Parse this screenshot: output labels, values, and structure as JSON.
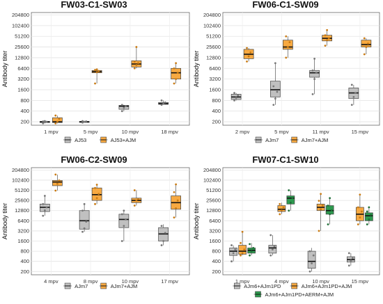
{
  "chart_data": [
    {
      "type": "box",
      "title": "FW03-C1-SW03",
      "ylabel": "Antibody titer",
      "ticks": [
        200,
        400,
        800,
        1600,
        3200,
        6400,
        12800,
        25600,
        51200,
        102400,
        204800
      ],
      "categories": [
        "1 mpv",
        "5 mpv",
        "10 mpv",
        "18 mpv"
      ],
      "legend_rows": [
        [
          "AJ53",
          "AJ53+AJM"
        ]
      ],
      "series": [
        {
          "name": "AJ53",
          "color": "#c0c0c0",
          "boxes": [
            {
              "cat": 0,
              "min": 180,
              "q1": 190,
              "med": 200,
              "q3": 205,
              "max": 210,
              "pts": [
                180,
                195,
                200,
                205,
                210
              ]
            },
            {
              "cat": 1,
              "min": 190,
              "q1": 195,
              "med": 200,
              "q3": 205,
              "max": 210,
              "pts": [
                190,
                200,
                205,
                210
              ]
            },
            {
              "cat": 2,
              "min": 400,
              "q1": 450,
              "med": 550,
              "q3": 580,
              "max": 600,
              "pts": [
                400,
                500,
                550,
                600
              ]
            },
            {
              "cat": 3,
              "min": 600,
              "q1": 620,
              "med": 650,
              "q3": 700,
              "max": 800,
              "pts": [
                600,
                650,
                700,
                800
              ]
            }
          ]
        },
        {
          "name": "AJ53+AJM",
          "color": "#f7a941",
          "boxes": [
            {
              "cat": 0,
              "min": 180,
              "q1": 190,
              "med": 200,
              "q3": 260,
              "max": 300,
              "pts": [
                180,
                200,
                240,
                300
              ]
            },
            {
              "cat": 1,
              "min": 2400,
              "q1": 4800,
              "med": 5200,
              "q3": 5600,
              "max": 6000,
              "pts": [
                2400,
                5000,
                5400,
                5800,
                6000
              ]
            },
            {
              "cat": 2,
              "min": 6400,
              "q1": 7000,
              "med": 8500,
              "q3": 10500,
              "max": 25600,
              "pts": [
                6400,
                8000,
                9000,
                10000,
                25600
              ]
            },
            {
              "cat": 3,
              "min": 2400,
              "q1": 3200,
              "med": 4800,
              "q3": 6400,
              "max": 9000,
              "pts": [
                2400,
                3200,
                4800,
                6400,
                9000
              ]
            }
          ]
        }
      ]
    },
    {
      "type": "box",
      "title": "FW06-C1-SW09",
      "ylabel": "Antibody titer",
      "ticks": [
        200,
        400,
        800,
        1600,
        3200,
        6400,
        12800,
        25600,
        51200,
        102400,
        204800
      ],
      "categories": [
        "2 mpv",
        "5 mpv",
        "11 mpv",
        "15 mpv"
      ],
      "legend_rows": [
        [
          "AJm7",
          "AJm7+AJM"
        ]
      ],
      "series": [
        {
          "name": "AJm7",
          "color": "#c0c0c0",
          "boxes": [
            {
              "cat": 0,
              "min": 800,
              "q1": 850,
              "med": 1000,
              "q3": 1200,
              "max": 1300,
              "pts": [
                800,
                950,
                1100,
                1300
              ]
            },
            {
              "cat": 1,
              "min": 600,
              "q1": 1000,
              "med": 1600,
              "q3": 2800,
              "max": 9000,
              "pts": [
                600,
                900,
                1400,
                2000,
                9000
              ]
            },
            {
              "cat": 2,
              "min": 1200,
              "q1": 3600,
              "med": 4800,
              "q3": 5600,
              "max": 12000,
              "pts": [
                1200,
                3200,
                4800,
                5600,
                12000
              ]
            },
            {
              "cat": 3,
              "min": 600,
              "q1": 900,
              "med": 1300,
              "q3": 1800,
              "max": 2200,
              "pts": [
                600,
                1000,
                1300,
                2200
              ]
            }
          ]
        },
        {
          "name": "AJm7+AJM",
          "color": "#f7a941",
          "boxes": [
            {
              "cat": 0,
              "min": 10000,
              "q1": 12000,
              "med": 16000,
              "q3": 22000,
              "max": 24000,
              "pts": [
                10000,
                14000,
                18000,
                24000
              ]
            },
            {
              "cat": 1,
              "min": 12800,
              "q1": 22000,
              "med": 25600,
              "q3": 40000,
              "max": 51200,
              "pts": [
                12800,
                25600,
                35000,
                51200
              ]
            },
            {
              "cat": 2,
              "min": 28000,
              "q1": 38000,
              "med": 45000,
              "q3": 55000,
              "max": 76800,
              "pts": [
                28000,
                40000,
                45000,
                55000,
                76800
              ]
            },
            {
              "cat": 3,
              "min": 16000,
              "q1": 25600,
              "med": 30000,
              "q3": 40000,
              "max": 45000,
              "pts": [
                16000,
                25600,
                32000,
                45000
              ]
            }
          ]
        }
      ]
    },
    {
      "type": "box",
      "title": "FW06-C2-SW09",
      "ylabel": "Antibody titer",
      "ticks": [
        200,
        400,
        800,
        1600,
        3200,
        6400,
        12800,
        25600,
        51200,
        102400,
        204800
      ],
      "categories": [
        "4 mpv",
        "8 mpv",
        "10 mpv",
        "17 mpv"
      ],
      "legend_rows": [
        [
          "AJm7",
          "AJm7+AJM"
        ]
      ],
      "series": [
        {
          "name": "AJm7",
          "color": "#c0c0c0",
          "boxes": [
            {
              "cat": 0,
              "min": 9000,
              "q1": 12000,
              "med": 16000,
              "q3": 20000,
              "max": 35000,
              "pts": [
                9000,
                13000,
                16000,
                20000,
                35000
              ]
            },
            {
              "cat": 1,
              "min": 3000,
              "q1": 3600,
              "med": 6400,
              "q3": 12800,
              "max": 20000,
              "pts": [
                3000,
                3800,
                6000,
                12800,
                20000
              ]
            },
            {
              "cat": 2,
              "min": 1600,
              "q1": 4000,
              "med": 7000,
              "q3": 10000,
              "max": 12800,
              "pts": [
                1600,
                4500,
                7000,
                10000,
                12800
              ]
            },
            {
              "cat": 3,
              "min": 1200,
              "q1": 1600,
              "med": 2600,
              "q3": 4000,
              "max": 5000,
              "pts": [
                1200,
                1600,
                2800,
                4500
              ]
            }
          ]
        },
        {
          "name": "AJm7+AJM",
          "color": "#f7a941",
          "boxes": [
            {
              "cat": 0,
              "min": 50000,
              "q1": 70000,
              "med": 90000,
              "q3": 100000,
              "max": 150000,
              "pts": [
                50000,
                80000,
                100000,
                150000
              ]
            },
            {
              "cat": 1,
              "min": 20000,
              "q1": 25600,
              "med": 38000,
              "q3": 60000,
              "max": 75000,
              "pts": [
                20000,
                30000,
                40000,
                60000,
                75000
              ]
            },
            {
              "cat": 2,
              "min": 18000,
              "q1": 22000,
              "med": 25600,
              "q3": 30000,
              "max": 51200,
              "pts": [
                18000,
                25600,
                28000,
                51200
              ]
            },
            {
              "cat": 3,
              "min": 8000,
              "q1": 14000,
              "med": 22000,
              "q3": 35000,
              "max": 76800,
              "pts": [
                8000,
                15000,
                25600,
                45000,
                76800
              ]
            }
          ]
        }
      ]
    },
    {
      "type": "box",
      "title": "FW07-C1-SW10",
      "ylabel": "Antibody titer",
      "ticks": [
        200,
        400,
        800,
        1600,
        3200,
        6400,
        12800,
        25600,
        51200,
        102400,
        204800
      ],
      "categories": [
        "1 mpv",
        "4 mpv",
        "10 mpv",
        "15 mpv"
      ],
      "legend_rows": [
        [
          "AJm6+AJm1PD",
          "AJm6+AJm1PD+AJM"
        ],
        [
          "AJm6+AJm1PD+AERM+AJM"
        ]
      ],
      "series": [
        {
          "name": "AJm6+AJm1PD",
          "color": "#c0c0c0",
          "boxes": [
            {
              "cat": 0,
              "min": 400,
              "q1": 600,
              "med": 800,
              "q3": 1000,
              "max": 1200,
              "pts": [
                400,
                700,
                900,
                1200
              ]
            },
            {
              "cat": 1,
              "min": 600,
              "q1": 700,
              "med": 1000,
              "q3": 1200,
              "max": 2400,
              "pts": [
                600,
                900,
                1100,
                2400
              ]
            },
            {
              "cat": 2,
              "min": 200,
              "q1": 250,
              "med": 400,
              "q3": 800,
              "max": 1000,
              "pts": [
                200,
                350,
                600,
                800
              ]
            },
            {
              "cat": 3,
              "min": 300,
              "q1": 380,
              "med": 450,
              "q3": 550,
              "max": 700,
              "pts": [
                300,
                420,
                500,
                700
              ]
            }
          ]
        },
        {
          "name": "AJm6+AJm1PD+AJM",
          "color": "#f7a941",
          "boxes": [
            {
              "cat": 0,
              "min": 600,
              "q1": 650,
              "med": 800,
              "q3": 1200,
              "max": 3000,
              "pts": [
                600,
                700,
                900,
                1400,
                3000
              ]
            },
            {
              "cat": 1,
              "min": 10000,
              "q1": 12000,
              "med": 14000,
              "q3": 18000,
              "max": 22000,
              "pts": [
                10000,
                13000,
                16000,
                20000
              ]
            },
            {
              "cat": 2,
              "min": 3200,
              "q1": 12800,
              "med": 16000,
              "q3": 20000,
              "max": 40000,
              "pts": [
                3200,
                14000,
                18000,
                25000,
                40000
              ]
            },
            {
              "cat": 3,
              "min": 5000,
              "q1": 6400,
              "med": 10000,
              "q3": 16000,
              "max": 38000,
              "pts": [
                5000,
                8000,
                12000,
                16000,
                38000
              ]
            }
          ]
        },
        {
          "name": "AJm6+AJm1PD+AERM+AJM",
          "color": "#2e9a4f",
          "boxes": [
            {
              "cat": 0,
              "min": 600,
              "q1": 700,
              "med": 850,
              "q3": 1000,
              "max": 1400,
              "pts": [
                600,
                800,
                1000,
                1300
              ]
            },
            {
              "cat": 1,
              "min": 12800,
              "q1": 20000,
              "med": 30000,
              "q3": 35000,
              "max": 51200,
              "pts": [
                12800,
                22000,
                30000,
                51200
              ]
            },
            {
              "cat": 2,
              "min": 5000,
              "q1": 10000,
              "med": 12800,
              "q3": 18000,
              "max": 30000,
              "pts": [
                5000,
                10000,
                13000,
                18000,
                30000
              ]
            },
            {
              "cat": 3,
              "min": 5000,
              "q1": 6400,
              "med": 9000,
              "q3": 11000,
              "max": 16000,
              "pts": [
                5000,
                7000,
                9500,
                12000,
                16000
              ]
            }
          ]
        }
      ]
    }
  ]
}
